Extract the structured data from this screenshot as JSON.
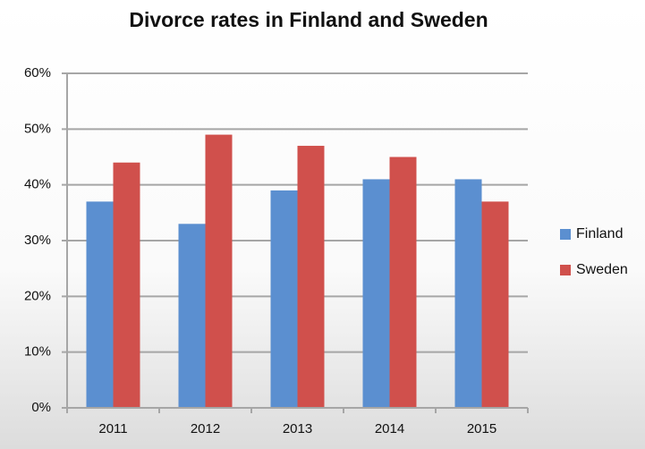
{
  "chart_data": {
    "type": "bar",
    "title": "Divorce rates in Finland and Sweden",
    "categories": [
      "2011",
      "2012",
      "2013",
      "2014",
      "2015"
    ],
    "series": [
      {
        "name": "Finland",
        "color": "#5b8fd0",
        "values": [
          37,
          33,
          39,
          41,
          41
        ]
      },
      {
        "name": "Sweden",
        "color": "#d0504c",
        "values": [
          44,
          49,
          47,
          45,
          37
        ]
      }
    ],
    "ylim": [
      0,
      60
    ],
    "yticks": [
      {
        "value": 0,
        "label": "0%"
      },
      {
        "value": 10,
        "label": "10%"
      },
      {
        "value": 20,
        "label": "20%"
      },
      {
        "value": 30,
        "label": "30%"
      },
      {
        "value": 40,
        "label": "40%"
      },
      {
        "value": 50,
        "label": "50%"
      },
      {
        "value": 60,
        "label": "60%"
      }
    ],
    "grid": true,
    "legend": "right"
  }
}
